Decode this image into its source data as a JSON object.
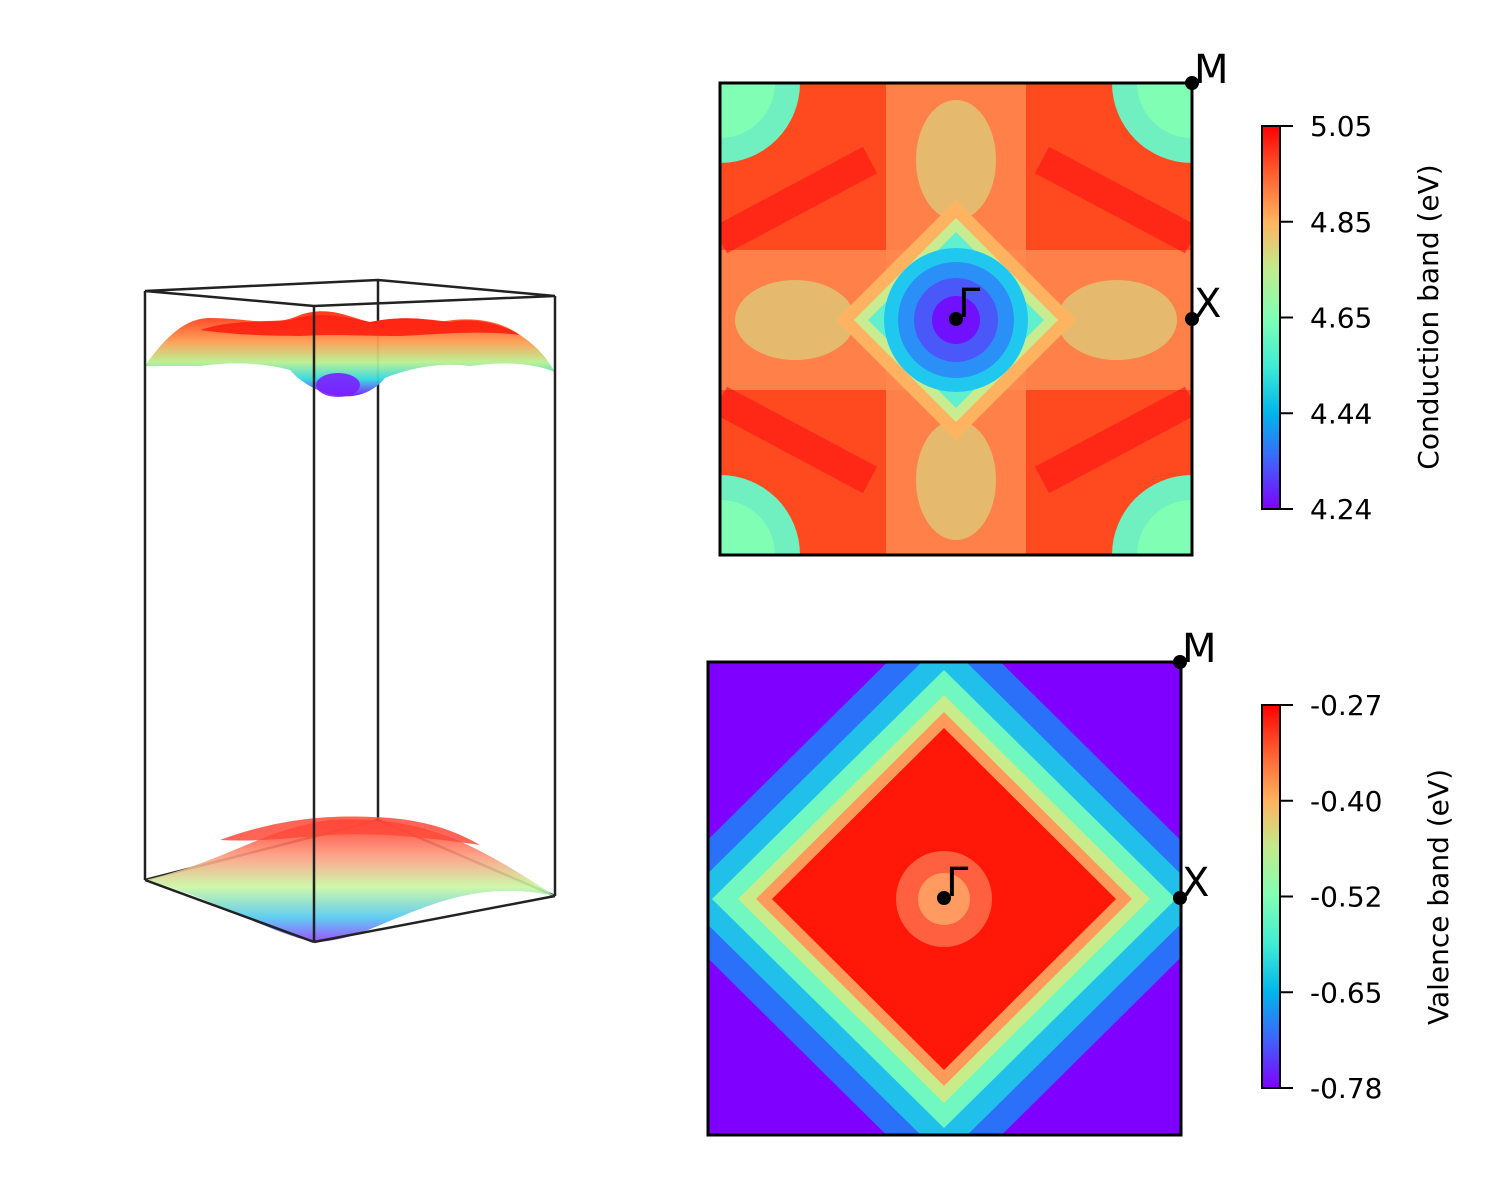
{
  "chart_data": [
    {
      "type": "surface3d",
      "surfaces": [
        "conduction",
        "valence"
      ],
      "colormap": "rainbow"
    },
    {
      "type": "heatmap",
      "colormap": "rainbow",
      "colorbar": {
        "label": "Conduction band (eV)",
        "ticks": [
          "5.05",
          "4.85",
          "4.65",
          "4.44",
          "4.24"
        ],
        "min": 4.24,
        "max": 5.05
      },
      "points": [
        {
          "label": "M",
          "kx": 1.0,
          "ky": 1.0
        },
        {
          "label": "X",
          "kx": 1.0,
          "ky": 0.0
        },
        {
          "label": "Γ",
          "kx": 0.0,
          "ky": 0.0
        }
      ]
    },
    {
      "type": "heatmap",
      "colormap": "rainbow",
      "colorbar": {
        "label": "Valence band (eV)",
        "ticks": [
          "-0.27",
          "-0.40",
          "-0.52",
          "-0.65",
          "-0.78"
        ],
        "min": -0.78,
        "max": -0.27
      },
      "points": [
        {
          "label": "M",
          "kx": 1.0,
          "ky": 1.0
        },
        {
          "label": "X",
          "kx": 1.0,
          "ky": 0.0
        },
        {
          "label": "Γ",
          "kx": 0.0,
          "ky": 0.0
        }
      ]
    }
  ]
}
